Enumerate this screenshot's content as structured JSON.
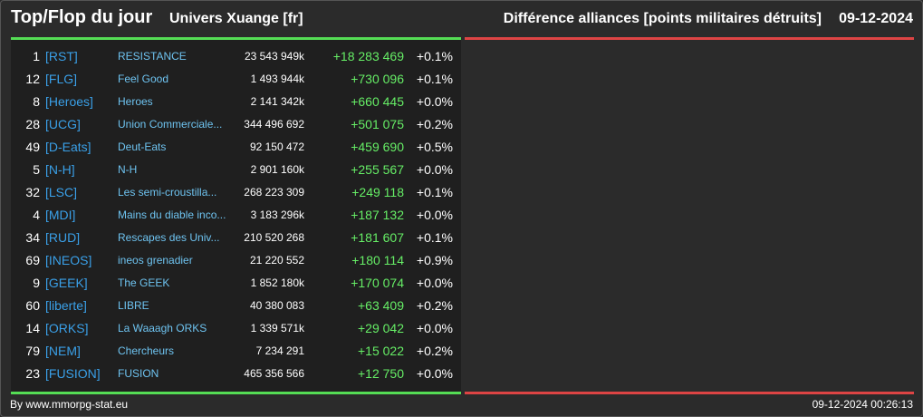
{
  "header": {
    "title": "Top/Flop du jour",
    "universe": "Univers Xuange [fr]",
    "subtitle": "Différence alliances [points militaires détruits]",
    "date": "09-12-2024"
  },
  "colors": {
    "background": "#2b2b2b",
    "top_accent": "#55dd55",
    "flop_accent": "#dd4444",
    "tag": "#3aa0e8",
    "name": "#6ec3f0",
    "gain": "#66ee66"
  },
  "rows": [
    {
      "rank": "1",
      "tag": "[RST]",
      "name": "RESISTANCE",
      "total": "23 543 949k",
      "diff": "+18 283 469",
      "pct": "+0.1%"
    },
    {
      "rank": "12",
      "tag": "[FLG]",
      "name": "Feel Good",
      "total": "1 493 944k",
      "diff": "+730 096",
      "pct": "+0.1%"
    },
    {
      "rank": "8",
      "tag": "[Heroes]",
      "name": "Heroes",
      "total": "2 141 342k",
      "diff": "+660 445",
      "pct": "+0.0%"
    },
    {
      "rank": "28",
      "tag": "[UCG]",
      "name": "Union Commerciale...",
      "total": "344 496 692",
      "diff": "+501 075",
      "pct": "+0.2%"
    },
    {
      "rank": "49",
      "tag": "[D-Eats]",
      "name": "Deut-Eats",
      "total": "92 150 472",
      "diff": "+459 690",
      "pct": "+0.5%"
    },
    {
      "rank": "5",
      "tag": "[N-H]",
      "name": "N-H",
      "total": "2 901 160k",
      "diff": "+255 567",
      "pct": "+0.0%"
    },
    {
      "rank": "32",
      "tag": "[LSC]",
      "name": "Les semi-croustilla...",
      "total": "268 223 309",
      "diff": "+249 118",
      "pct": "+0.1%"
    },
    {
      "rank": "4",
      "tag": "[MDI]",
      "name": "Mains du diable inco...",
      "total": "3 183 296k",
      "diff": "+187 132",
      "pct": "+0.0%"
    },
    {
      "rank": "34",
      "tag": "[RUD]",
      "name": "Rescapes des Univ...",
      "total": "210 520 268",
      "diff": "+181 607",
      "pct": "+0.1%"
    },
    {
      "rank": "69",
      "tag": "[INEOS]",
      "name": "ineos grenadier",
      "total": "21 220 552",
      "diff": "+180 114",
      "pct": "+0.9%"
    },
    {
      "rank": "9",
      "tag": "[GEEK]",
      "name": "The GEEK",
      "total": "1 852 180k",
      "diff": "+170 074",
      "pct": "+0.0%"
    },
    {
      "rank": "60",
      "tag": "[liberte]",
      "name": "LIBRE",
      "total": "40 380 083",
      "diff": "+63 409",
      "pct": "+0.2%"
    },
    {
      "rank": "14",
      "tag": "[ORKS]",
      "name": "La Waaagh ORKS",
      "total": "1 339 571k",
      "diff": "+29 042",
      "pct": "+0.0%"
    },
    {
      "rank": "79",
      "tag": "[NEM]",
      "name": "Chercheurs",
      "total": "7 234 291",
      "diff": "+15 022",
      "pct": "+0.2%"
    },
    {
      "rank": "23",
      "tag": "[FUSION]",
      "name": "FUSION",
      "total": "465 356 566",
      "diff": "+12 750",
      "pct": "+0.0%"
    }
  ],
  "footer": {
    "credit": "By www.mmorpg-stat.eu",
    "timestamp": "09-12-2024 00:26:13"
  }
}
